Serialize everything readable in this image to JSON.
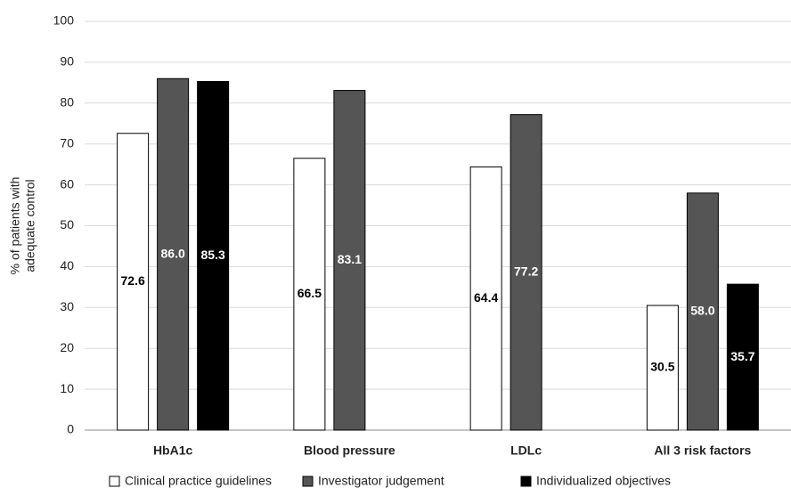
{
  "chart_data": {
    "type": "bar",
    "categories": [
      "HbA1c",
      "Blood pressure",
      "LDLc",
      "All 3 risk factors"
    ],
    "ylabel": [
      "% of patients with",
      "adequate control"
    ],
    "series": [
      {
        "name": "Clinical practice guidelines",
        "color": "#ffffff",
        "values": [
          72.6,
          66.5,
          64.4,
          30.5
        ],
        "value_labels": [
          "72.6",
          "66.5",
          "64.4",
          "30.5"
        ]
      },
      {
        "name": "Investigator judgement",
        "color": "#555555",
        "values": [
          86.0,
          83.1,
          77.2,
          58.0
        ],
        "value_labels": [
          "86.0",
          "83.1",
          "77.2",
          "58.0"
        ]
      },
      {
        "name": "Individualized objectives",
        "color": "#000000",
        "values": [
          85.3,
          null,
          null,
          35.7
        ],
        "value_labels": [
          "85.3",
          null,
          null,
          "35.7"
        ]
      }
    ],
    "ylim": [
      0,
      100
    ],
    "yticks": [
      0,
      10,
      20,
      30,
      40,
      50,
      60,
      70,
      80,
      90,
      100
    ],
    "grid": true
  }
}
